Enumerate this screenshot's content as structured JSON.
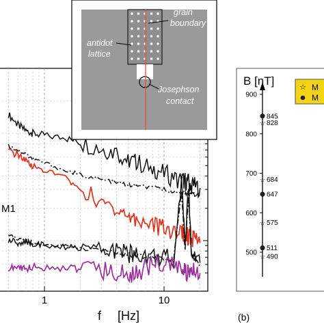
{
  "chart_data": [
    {
      "type": "line",
      "xlabel_f": "f",
      "xlabel_unit": "[Hz]",
      "x_scale": "log",
      "y_scale": "log",
      "grid": true,
      "x_ticks": [
        "1",
        "10"
      ],
      "annotation_m1": "M1",
      "x": [
        0.5,
        0.6,
        0.7,
        0.8,
        1,
        1.5,
        2,
        3,
        4,
        5,
        6,
        8,
        10,
        12,
        14,
        15,
        16,
        17,
        18,
        20
      ],
      "series": [
        {
          "color": "#111111",
          "values": [
            15.0,
            12.0,
            10.5,
            10.0,
            9.5,
            9.0,
            8.2,
            7.2,
            6.6,
            5.6,
            5.3,
            4.7,
            4.3,
            3.8,
            3.7,
            3.6,
            3.5,
            3.3,
            3.2,
            3.1
          ]
        },
        {
          "color": "#111111",
          "dashed": true,
          "values": [
            7.6,
            7.0,
            6.4,
            5.8,
            5.3,
            4.5,
            4.1,
            3.7,
            3.5,
            3.3,
            3.2,
            3.1,
            3.0,
            2.9,
            2.85,
            2.8,
            2.75,
            2.7,
            2.7,
            2.65
          ]
        },
        {
          "color": "#e0301e",
          "values": [
            6.8,
            6.3,
            5.5,
            4.9,
            4.5,
            3.8,
            3.0,
            2.3,
            2.0,
            1.7,
            1.55,
            1.4,
            1.3,
            1.25,
            1.2,
            1.15,
            1.1,
            1.05,
            1.0,
            0.95
          ]
        },
        {
          "color": "#111111",
          "values": [
            1.0,
            0.95,
            0.95,
            0.93,
            0.9,
            0.85,
            0.85,
            0.8,
            0.8,
            0.75,
            0.75,
            0.72,
            0.7,
            0.68,
            3.5,
            0.9,
            3.2,
            0.75,
            0.7,
            0.62
          ]
        },
        {
          "color": "#111111",
          "dashed": true,
          "values": [
            1.1,
            1.05,
            1.0,
            0.97,
            0.93,
            0.88,
            0.84,
            0.8,
            0.77,
            0.74,
            0.72,
            0.7,
            0.68,
            0.66,
            2.8,
            0.8,
            2.6,
            0.7,
            0.66,
            0.6
          ]
        },
        {
          "color": "#9b2f9b",
          "values": [
            0.55,
            0.56,
            0.55,
            0.57,
            0.56,
            0.56,
            0.55,
            0.52,
            0.5,
            0.48,
            0.5,
            0.6,
            0.62,
            0.58,
            0.55,
            0.52,
            0.5,
            0.52,
            0.5,
            0.5
          ]
        }
      ]
    },
    {
      "type": "scatter",
      "ylabel": "B [nT]",
      "y_ticks": [
        500,
        600,
        700,
        800,
        900
      ],
      "ylim": [
        470,
        940
      ],
      "legend_items": [
        "M",
        "M"
      ],
      "panel_label": "(b)",
      "points": [
        {
          "value": 845,
          "label": "845",
          "marker": "dot"
        },
        {
          "value": 828,
          "label": "828",
          "marker": "star"
        },
        {
          "value": 684,
          "label": "684",
          "marker": "star"
        },
        {
          "value": 647,
          "label": "647",
          "marker": "dot"
        },
        {
          "value": 575,
          "label": "575",
          "marker": "star"
        },
        {
          "value": 511,
          "label": "511",
          "marker": "dot"
        },
        {
          "value": 490,
          "label": "490",
          "marker": "star"
        }
      ]
    }
  ],
  "inset": {
    "label_antidot_1": "antidot",
    "label_antidot_2": "lattice",
    "label_grain_1": "grain",
    "label_grain_2": "boundary",
    "label_josephson_1": "Josephson",
    "label_josephson_2": "contact",
    "sample_color": "#9a9a9a",
    "boundary_color": "#e8502a"
  }
}
